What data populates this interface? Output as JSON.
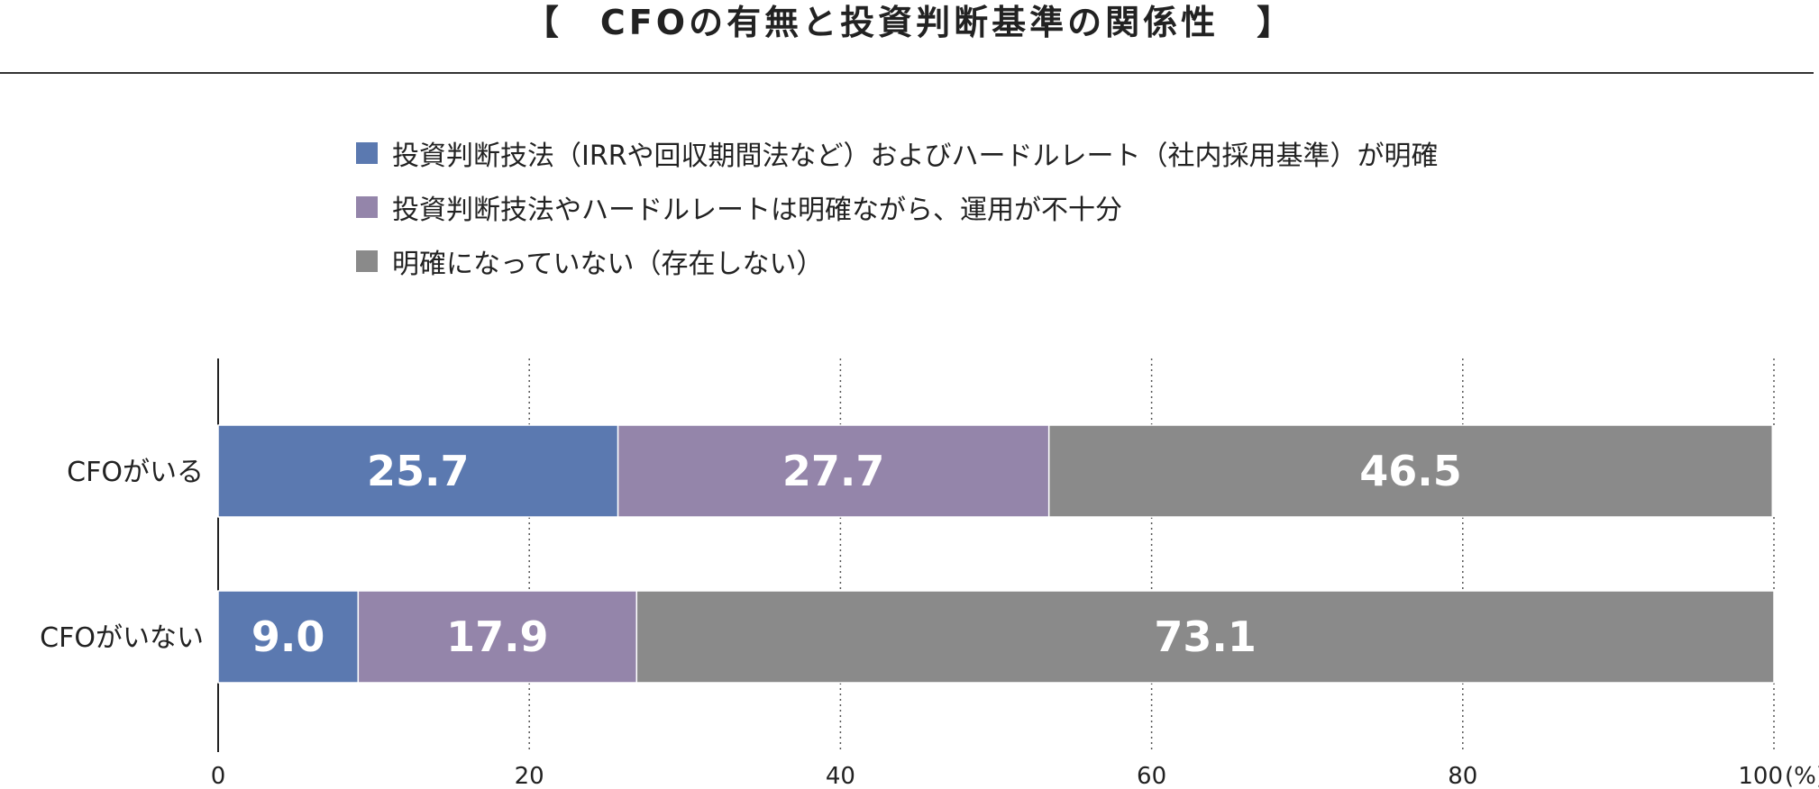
{
  "title": "【　CFOの有無と投資判断基準の関係性　】",
  "colors": {
    "series1": "#5b79b0",
    "series2": "#9485aa",
    "series3": "#8a8a8a",
    "axis": "#222222",
    "grid": "#555555"
  },
  "chart_data": {
    "type": "bar",
    "orientation": "horizontal",
    "stacked": true,
    "title": "【　CFOの有無と投資判断基準の関係性　】",
    "categories": [
      "CFOがいる",
      "CFOがいない"
    ],
    "series": [
      {
        "name": "投資判断技法（IRRや回収期間法など）およびハードルレート（社内採用基準）が明確",
        "values": [
          25.7,
          9.0
        ],
        "labels": [
          "25.7",
          "9.0"
        ]
      },
      {
        "name": "投資判断技法やハードルレートは明確ながら、運用が不十分",
        "values": [
          27.7,
          17.9
        ],
        "labels": [
          "27.7",
          "17.9"
        ]
      },
      {
        "name": "明確になっていない（存在しない）",
        "values": [
          46.5,
          73.1
        ],
        "labels": [
          "46.5",
          "73.1"
        ]
      }
    ],
    "xlim": [
      0,
      100
    ],
    "xticks": [
      "0",
      "20",
      "40",
      "60",
      "80",
      "100"
    ],
    "xunit": "(%)",
    "grid": "vertical-dotted",
    "legend": "top"
  }
}
